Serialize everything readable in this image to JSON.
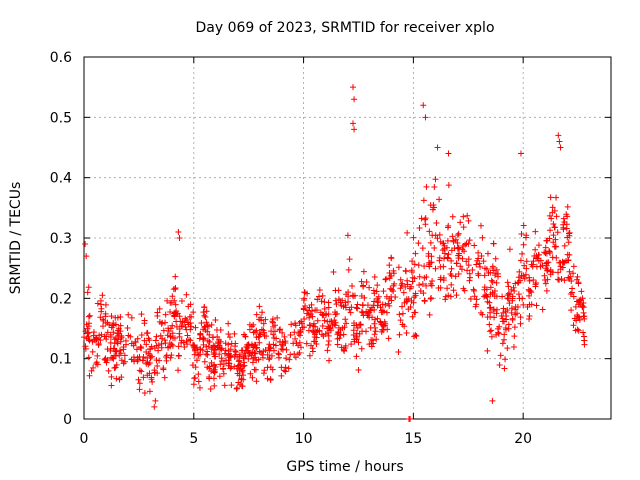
{
  "chart_data": {
    "type": "scatter",
    "title": "Day 069 of 2023, SRMTID for receiver xplo",
    "xlabel": "GPS time / hours",
    "ylabel": "SRMTID / TECUs",
    "xlim": [
      0,
      24
    ],
    "ylim": [
      0,
      0.6
    ],
    "xticks": [
      0,
      5,
      10,
      15,
      20
    ],
    "yticks": [
      0,
      0.1,
      0.2,
      0.3,
      0.4,
      0.5,
      0.6
    ],
    "xtick_labels": [
      "0",
      "5",
      "10",
      "15",
      "20"
    ],
    "ytick_labels": [
      "0",
      "0.1",
      "0.2",
      "0.3",
      "0.4",
      "0.5",
      "0.6"
    ],
    "grid": true,
    "marker": "plus",
    "series": [
      {
        "name": "SRMTID",
        "color": "#ff0000",
        "envelope": {
          "hours": [
            0,
            0.5,
            1,
            1.5,
            2,
            2.5,
            3,
            3.5,
            4,
            4.5,
            5,
            5.5,
            6,
            6.5,
            7,
            7.5,
            8,
            8.5,
            9,
            9.5,
            10,
            10.5,
            11,
            11.5,
            12,
            12.5,
            13,
            13.5,
            14,
            14.5,
            15,
            15.5,
            16,
            16.5,
            17,
            17.5,
            18,
            18.5,
            19,
            19.5,
            20,
            20.5,
            21,
            21.5,
            22,
            22.5,
            22.8
          ],
          "center": [
            0.14,
            0.12,
            0.14,
            0.11,
            0.14,
            0.12,
            0.1,
            0.12,
            0.15,
            0.16,
            0.12,
            0.13,
            0.11,
            0.1,
            0.1,
            0.11,
            0.13,
            0.12,
            0.13,
            0.12,
            0.16,
            0.15,
            0.17,
            0.15,
            0.19,
            0.16,
            0.18,
            0.17,
            0.21,
            0.2,
            0.23,
            0.25,
            0.3,
            0.26,
            0.28,
            0.27,
            0.24,
            0.2,
            0.17,
            0.18,
            0.23,
            0.25,
            0.26,
            0.3,
            0.28,
            0.18,
            0.15
          ],
          "spread": [
            0.06,
            0.05,
            0.06,
            0.05,
            0.05,
            0.05,
            0.06,
            0.05,
            0.06,
            0.05,
            0.05,
            0.05,
            0.04,
            0.04,
            0.04,
            0.04,
            0.05,
            0.05,
            0.05,
            0.04,
            0.05,
            0.04,
            0.04,
            0.05,
            0.07,
            0.06,
            0.05,
            0.05,
            0.06,
            0.06,
            0.07,
            0.09,
            0.09,
            0.07,
            0.07,
            0.06,
            0.07,
            0.08,
            0.07,
            0.06,
            0.07,
            0.06,
            0.06,
            0.08,
            0.07,
            0.05,
            0.05
          ],
          "point_count": 1400,
          "seed": 69
        },
        "notable_points": [
          [
            12.25,
            0.55
          ],
          [
            12.3,
            0.53
          ],
          [
            12.25,
            0.49
          ],
          [
            12.3,
            0.48
          ],
          [
            15.45,
            0.52
          ],
          [
            15.55,
            0.5
          ],
          [
            16.1,
            0.45
          ],
          [
            21.6,
            0.47
          ],
          [
            21.65,
            0.46
          ],
          [
            21.7,
            0.45
          ],
          [
            16.6,
            0.44
          ],
          [
            19.9,
            0.44
          ],
          [
            18.6,
            0.03
          ],
          [
            3.2,
            0.02
          ],
          [
            3.25,
            0.03
          ],
          [
            6.95,
            0.05
          ],
          [
            0.05,
            0.29
          ],
          [
            0.1,
            0.27
          ],
          [
            4.3,
            0.31
          ],
          [
            4.35,
            0.3
          ],
          [
            14.8,
            0.0
          ],
          [
            14.85,
            0.0
          ]
        ]
      }
    ]
  }
}
